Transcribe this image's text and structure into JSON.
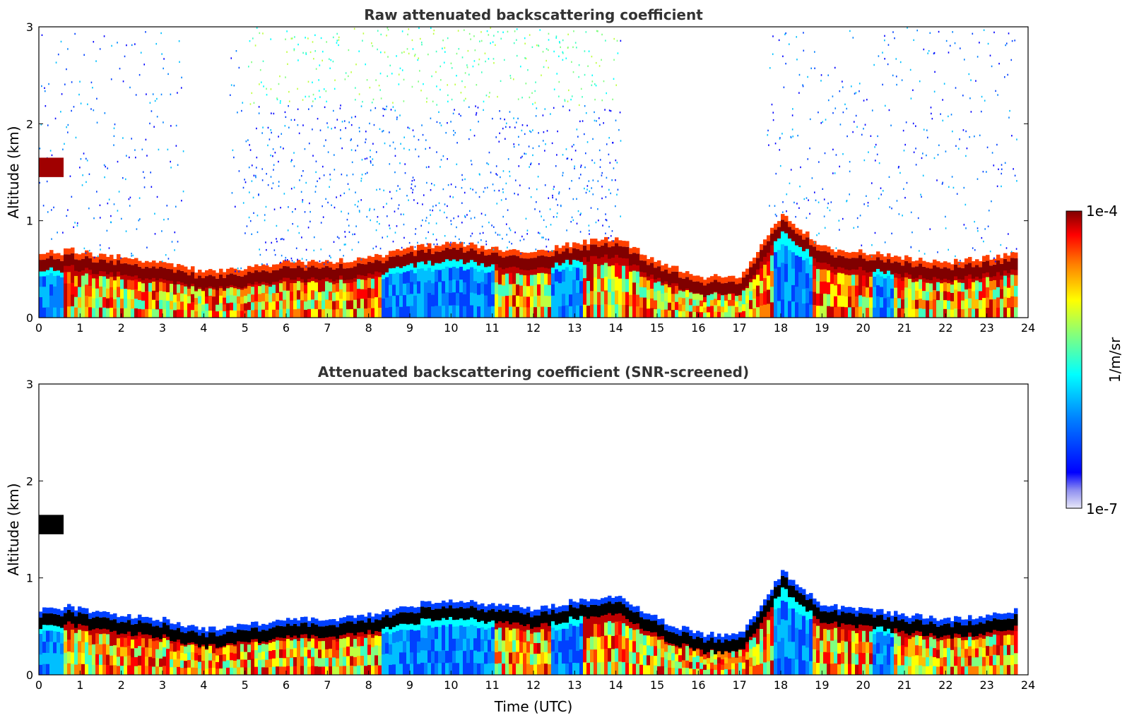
{
  "chart_data": [
    {
      "type": "heatmap",
      "title": "Raw attenuated backscattering coefficient",
      "ylabel": "Altitude (km)",
      "xlabel": "",
      "xlim": [
        0,
        24
      ],
      "ylim": [
        0,
        3
      ],
      "xticks": [
        "0",
        "1",
        "2",
        "3",
        "4",
        "5",
        "6",
        "7",
        "8",
        "9",
        "10",
        "11",
        "12",
        "13",
        "14",
        "15",
        "16",
        "17",
        "18",
        "19",
        "20",
        "21",
        "22",
        "23",
        "24"
      ],
      "yticks": [
        "0",
        "1",
        "2",
        "3"
      ],
      "screened": false,
      "description_layers": {
        "boundary_layer_top_km": [
          [
            0.6,
            0.6
          ],
          [
            1,
            0.55
          ],
          [
            2,
            0.5
          ],
          [
            3,
            0.45
          ],
          [
            4,
            0.35
          ],
          [
            5,
            0.4
          ],
          [
            6,
            0.45
          ],
          [
            7,
            0.45
          ],
          [
            8,
            0.5
          ],
          [
            9,
            0.6
          ],
          [
            10,
            0.65
          ],
          [
            11,
            0.6
          ],
          [
            12,
            0.55
          ],
          [
            13,
            0.65
          ],
          [
            14,
            0.7
          ],
          [
            15,
            0.45
          ],
          [
            16,
            0.3
          ],
          [
            17,
            0.3
          ],
          [
            18,
            0.95
          ],
          [
            19,
            0.6
          ],
          [
            20,
            0.55
          ],
          [
            21,
            0.5
          ],
          [
            22,
            0.45
          ],
          [
            23,
            0.5
          ],
          [
            23.8,
            0.55
          ]
        ],
        "elevated_cloud": {
          "x": [
            0,
            0.6
          ],
          "altitude_km": 1.55
        }
      }
    },
    {
      "type": "heatmap",
      "title": "Attenuated backscattering coefficient (SNR-screened)",
      "ylabel": "Altitude (km)",
      "xlabel": "Time (UTC)",
      "xlim": [
        0,
        24
      ],
      "ylim": [
        0,
        3
      ],
      "xticks": [
        "0",
        "1",
        "2",
        "3",
        "4",
        "5",
        "6",
        "7",
        "8",
        "9",
        "10",
        "11",
        "12",
        "13",
        "14",
        "15",
        "16",
        "17",
        "18",
        "19",
        "20",
        "21",
        "22",
        "23",
        "24"
      ],
      "yticks": [
        "0",
        "1",
        "2",
        "3"
      ],
      "screened": true
    }
  ],
  "colorbar": {
    "label": "1/m/sr",
    "max_label": "1e-4",
    "min_label": "1e-7",
    "colormap": "jet",
    "colors": [
      "#e8e8f8",
      "#b0b0f0",
      "#0000ff",
      "#0080ff",
      "#00ffff",
      "#80ff80",
      "#ffff00",
      "#ff8000",
      "#ff0000",
      "#800000"
    ]
  }
}
